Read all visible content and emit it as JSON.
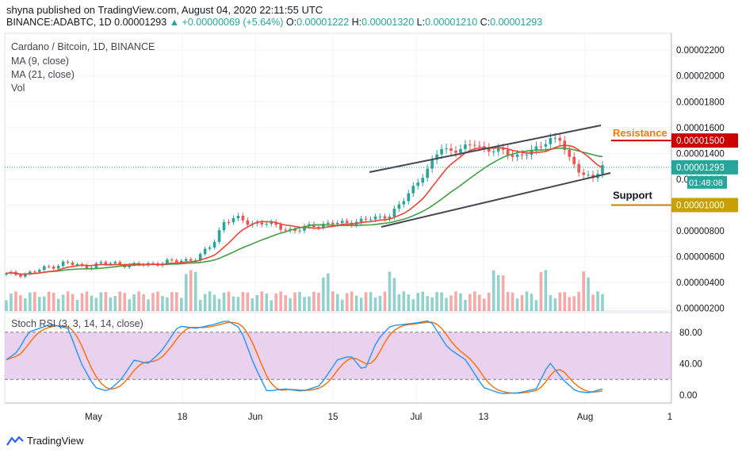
{
  "header": {
    "publish_line": "shyna published on TradingView.com, August 04, 2020 22:11:55 UTC",
    "symbol": "BINANCE:ADABTC, 1D",
    "last": "0.00001293",
    "change": "▲ +0.00000069 (+5.64%)",
    "o_label": "O:",
    "o_val": "0.00001222",
    "h_label": "H:",
    "h_val": "0.00001320",
    "l_label": "L:",
    "l_val": "0.00001210",
    "c_label": "C:",
    "c_val": "0.00001293"
  },
  "legend": {
    "title": "Cardano / Bitcoin, 1D, BINANCE",
    "ma9": "MA (9, close)",
    "ma21": "MA (21, close)",
    "vol": "Vol"
  },
  "rsi_label": "Stoch RSI (3, 3, 14, 14, close)",
  "annotations": {
    "resistance": "Resistance",
    "support": "Support",
    "resistance_price": "0.00001500",
    "support_price": "0.00001000",
    "current_price": "0.00001293",
    "countdown": "01:48:08"
  },
  "footer": {
    "brand": "TradingView"
  },
  "colors": {
    "up": "#26a69a",
    "down": "#ef5350",
    "ma9": "#f44336",
    "ma21": "#43a047",
    "rsi_k": "#2196f3",
    "rsi_d": "#ff6d00",
    "rsi_band": "#e1bee7",
    "resistance": "#cc0000",
    "support": "#b8860b",
    "label_orange": "#f57c00"
  },
  "chart_data": {
    "type": "candlestick",
    "price_axis_ticks": [
      "0.00002200",
      "0.00002000",
      "0.00001800",
      "0.00001600",
      "0.00001400",
      "0.00001200",
      "0.00001000",
      "0.00000800",
      "0.00000600",
      "0.00000400",
      "0.00000200"
    ],
    "price_range": [
      1.8e-06,
      2.33e-05
    ],
    "x_ticks": [
      "May",
      "18",
      "Jun",
      "15",
      "Jul",
      "13",
      "Aug",
      "1"
    ],
    "rsi_ticks": [
      "80.00",
      "40.00",
      "0.00"
    ],
    "rsi_range": [
      -10,
      105
    ],
    "rsi_band": [
      20,
      80
    ]
  }
}
